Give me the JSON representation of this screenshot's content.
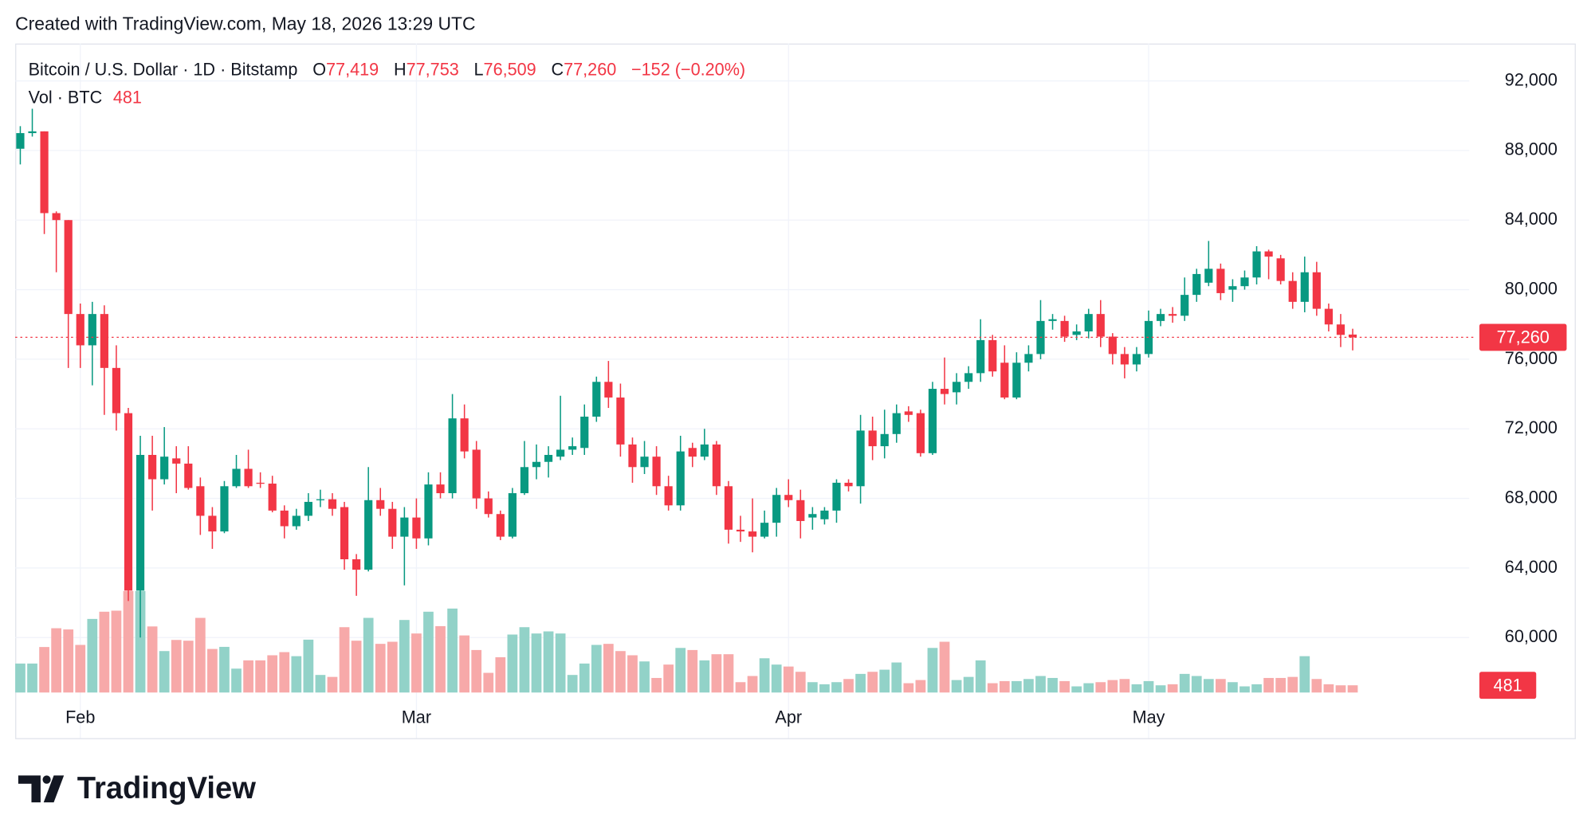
{
  "header": {
    "text": "Created with TradingView.com, May 18, 2026 13:29 UTC"
  },
  "legend": {
    "symbol": "Bitcoin / U.S. Dollar · 1D · Bitstamp",
    "fields": [
      {
        "key": "O",
        "value": "77,419"
      },
      {
        "key": "H",
        "value": "77,753"
      },
      {
        "key": "L",
        "value": "76,509"
      },
      {
        "key": "C",
        "value": "77,260"
      }
    ],
    "change": "−152 (−0.20%)",
    "volume_title": "Vol · BTC",
    "volume_value": "481"
  },
  "footer": {
    "brand": "TradingView"
  },
  "chart_data": {
    "type": "candlestick",
    "categories": [
      null,
      null,
      null,
      null,
      null,
      "Feb",
      null,
      null,
      null,
      null,
      null,
      null,
      null,
      null,
      null,
      null,
      null,
      null,
      null,
      null,
      null,
      null,
      null,
      null,
      null,
      null,
      null,
      null,
      null,
      null,
      null,
      null,
      null,
      "Mar",
      null,
      null,
      null,
      null,
      null,
      null,
      null,
      null,
      null,
      null,
      null,
      null,
      null,
      null,
      null,
      null,
      null,
      null,
      null,
      null,
      null,
      null,
      null,
      null,
      null,
      null,
      null,
      null,
      null,
      null,
      "Apr",
      null,
      null,
      null,
      null,
      null,
      null,
      null,
      null,
      null,
      null,
      null,
      null,
      null,
      null,
      null,
      null,
      null,
      null,
      null,
      null,
      null,
      null,
      null,
      null,
      null,
      null,
      null,
      null,
      null,
      "May",
      null,
      null,
      null,
      null,
      null,
      null,
      null,
      null,
      null,
      null,
      null,
      null,
      null,
      null,
      null,
      null,
      null
    ],
    "open": [
      88100,
      89000,
      89100,
      84400,
      84000,
      78600,
      76800,
      78600,
      75500,
      72900,
      62700,
      70500,
      69100,
      70300,
      70000,
      68700,
      67000,
      66100,
      68700,
      69700,
      68900,
      68850,
      67300,
      66400,
      67000,
      67900,
      67950,
      67500,
      64500,
      63900,
      67900,
      67400,
      65800,
      66900,
      65700,
      68800,
      68300,
      72600,
      70800,
      68000,
      67100,
      65800,
      68300,
      69800,
      70100,
      70400,
      70800,
      70900,
      72700,
      74700,
      73800,
      71100,
      69800,
      70400,
      68700,
      67600,
      70900,
      70400,
      71100,
      68700,
      66200,
      66100,
      65800,
      66600,
      68200,
      67900,
      66900,
      66800,
      67300,
      68900,
      68700,
      71900,
      71000,
      71700,
      73000,
      72900,
      70600,
      74300,
      74100,
      74700,
      75200,
      77100,
      75800,
      73800,
      75800,
      76300,
      78200,
      78200,
      77400,
      77600,
      78600,
      77300,
      76300,
      75700,
      76300,
      78200,
      78600,
      78500,
      79700,
      80400,
      81200,
      80000,
      80200,
      80700,
      82200,
      81800,
      80500,
      79300,
      81000,
      78900,
      78000,
      77419
    ],
    "high": [
      89400,
      90400,
      89100,
      84500,
      84000,
      79200,
      79300,
      79100,
      76800,
      73200,
      71600,
      71600,
      72100,
      71000,
      71000,
      69200,
      67500,
      69000,
      70500,
      70800,
      69500,
      69300,
      67600,
      67400,
      68300,
      68500,
      68300,
      67800,
      64800,
      69800,
      68600,
      67800,
      67500,
      68000,
      69500,
      69500,
      74000,
      73400,
      71300,
      68400,
      67300,
      68600,
      71300,
      71100,
      71000,
      73900,
      71500,
      73400,
      75000,
      75900,
      74600,
      71500,
      71300,
      71000,
      69300,
      71600,
      71200,
      72000,
      71300,
      69000,
      67000,
      68000,
      67300,
      68600,
      69100,
      68500,
      67500,
      67500,
      69100,
      69100,
      72800,
      72700,
      73100,
      73400,
      73300,
      73100,
      74700,
      76100,
      75200,
      75600,
      78300,
      77400,
      76800,
      76400,
      76800,
      79400,
      78600,
      78500,
      78000,
      78900,
      79400,
      77500,
      76700,
      76700,
      78800,
      78900,
      79000,
      80700,
      81200,
      82800,
      81500,
      80600,
      81100,
      82500,
      82300,
      82000,
      81000,
      81900,
      81600,
      79200,
      78600,
      77753
    ],
    "low": [
      87200,
      88800,
      83200,
      81000,
      75500,
      75500,
      74500,
      72800,
      71900,
      62100,
      60000,
      67300,
      68800,
      68300,
      68500,
      65900,
      65100,
      66000,
      68600,
      68600,
      68600,
      67200,
      65700,
      66200,
      66700,
      67500,
      67000,
      63900,
      62400,
      63800,
      67000,
      65100,
      63000,
      65100,
      65300,
      68000,
      68000,
      70300,
      67400,
      66900,
      65600,
      65700,
      68200,
      69100,
      69200,
      70200,
      70500,
      70500,
      72400,
      73200,
      70400,
      68900,
      69400,
      68200,
      67300,
      67300,
      69800,
      70200,
      68200,
      65400,
      65500,
      64900,
      65700,
      65800,
      67500,
      65700,
      66200,
      66500,
      66600,
      68400,
      67700,
      70200,
      70300,
      71200,
      72400,
      70400,
      70500,
      73400,
      73400,
      74300,
      74700,
      75000,
      73700,
      73700,
      75300,
      76000,
      77700,
      77000,
      77100,
      77200,
      76700,
      75700,
      74900,
      75300,
      76100,
      77900,
      78100,
      78200,
      79300,
      80200,
      79400,
      79300,
      80000,
      80300,
      80600,
      80300,
      78900,
      78700,
      78500,
      77600,
      76700,
      76509
    ],
    "close": [
      89000,
      89100,
      84400,
      84000,
      78600,
      76800,
      78600,
      75500,
      72900,
      62700,
      70500,
      69100,
      70400,
      70000,
      68600,
      67000,
      66100,
      68700,
      69700,
      68700,
      68850,
      67300,
      66400,
      67000,
      67800,
      67950,
      67400,
      64500,
      63900,
      67900,
      67400,
      65800,
      66900,
      65700,
      68800,
      68300,
      72600,
      70700,
      68000,
      67100,
      65800,
      68300,
      69800,
      70100,
      70500,
      70800,
      71000,
      72700,
      74700,
      73800,
      71100,
      69800,
      70400,
      68700,
      67600,
      70700,
      70400,
      71100,
      68700,
      66200,
      66100,
      65800,
      66600,
      68200,
      67900,
      66700,
      67100,
      67300,
      68900,
      68700,
      71900,
      71000,
      71700,
      72900,
      72800,
      70600,
      74300,
      74000,
      74700,
      75200,
      77100,
      75300,
      73800,
      75800,
      76300,
      78200,
      78300,
      77300,
      77600,
      78600,
      77300,
      76300,
      75700,
      76300,
      78200,
      78600,
      78500,
      79700,
      80900,
      81200,
      79800,
      80200,
      80700,
      82200,
      81900,
      80500,
      79300,
      81000,
      78900,
      78000,
      77400,
      77260
    ],
    "volume": [
      1930,
      1930,
      3030,
      4280,
      4200,
      3170,
      4900,
      5380,
      5450,
      6760,
      6760,
      4400,
      2760,
      3500,
      3450,
      4970,
      2900,
      3040,
      1590,
      2140,
      2140,
      2480,
      2690,
      2420,
      3520,
      1170,
      1040,
      4350,
      3450,
      4970,
      3240,
      3380,
      4830,
      3930,
      5380,
      4420,
      5590,
      3800,
      2830,
      1310,
      2350,
      3860,
      4350,
      3930,
      4070,
      3930,
      1170,
      1930,
      3170,
      3240,
      2760,
      2480,
      2070,
      970,
      1860,
      2970,
      2830,
      2140,
      2550,
      2550,
      690,
      1100,
      2280,
      1860,
      1730,
      1380,
      690,
      550,
      690,
      900,
      1240,
      1380,
      1520,
      2000,
      620,
      830,
      2970,
      3380,
      830,
      1040,
      2140,
      620,
      760,
      760,
      900,
      1100,
      970,
      760,
      410,
      620,
      690,
      830,
      900,
      550,
      760,
      480,
      550,
      1240,
      1100,
      900,
      900,
      690,
      410,
      550,
      970,
      970,
      1040,
      2420,
      900,
      550,
      480,
      481
    ],
    "up_color": "#089981",
    "down_color": "#f23645",
    "volume_up_color": "#92d2c8",
    "volume_down_color": "#f7a9a9",
    "ylim": [
      56840,
      93970
    ],
    "yticks": [
      {
        "value": 60000,
        "label": "60,000"
      },
      {
        "value": 64000,
        "label": "64,000"
      },
      {
        "value": 68000,
        "label": "68,000"
      },
      {
        "value": 72000,
        "label": "72,000"
      },
      {
        "value": 76000,
        "label": "76,000"
      },
      {
        "value": 80000,
        "label": "80,000"
      },
      {
        "value": 84000,
        "label": "84,000"
      },
      {
        "value": 88000,
        "label": "88,000"
      },
      {
        "value": 92000,
        "label": "92,000"
      }
    ],
    "volume_ylim": [
      0,
      43000
    ],
    "last_price_label": "77,260",
    "last_volume_label": "481",
    "grid": true
  }
}
